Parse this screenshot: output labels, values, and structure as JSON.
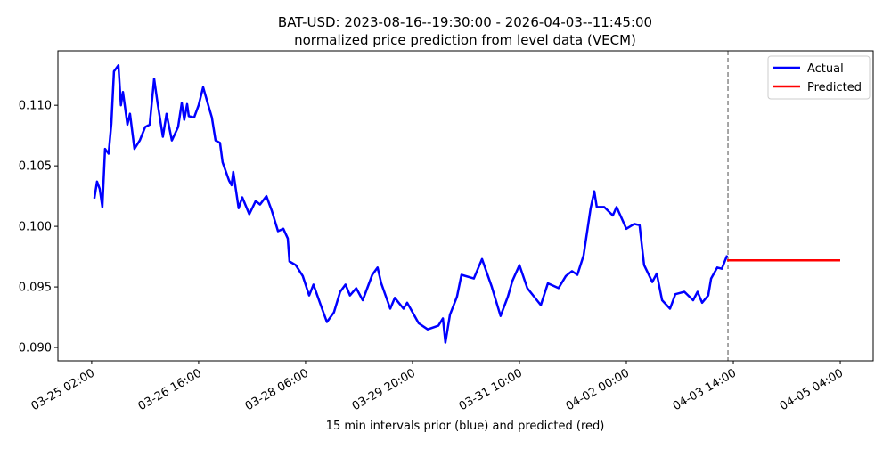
{
  "chart_data": {
    "type": "line",
    "title": "BAT-USD: 2023-08-16--19:30:00 - 2026-04-03--11:45:00",
    "subtitle": "normalized price prediction from level data (VECM)",
    "xlabel": "15 min intervals prior (blue) and predicted (red)",
    "ylabel": "",
    "x_unit": "hours since 03-25 02:00",
    "xlim": [
      -12,
      277.7
    ],
    "ylim": [
      0.0889,
      0.1145
    ],
    "x_ticks": [
      {
        "value": 0,
        "label": "03-25 02:00"
      },
      {
        "value": 38,
        "label": "03-26 16:00"
      },
      {
        "value": 76,
        "label": "03-28 06:00"
      },
      {
        "value": 114,
        "label": "03-29 20:00"
      },
      {
        "value": 152,
        "label": "03-31 10:00"
      },
      {
        "value": 190,
        "label": "04-02 00:00"
      },
      {
        "value": 228,
        "label": "04-03 14:00"
      },
      {
        "value": 266,
        "label": "04-05 04:00"
      }
    ],
    "y_ticks": [
      {
        "value": 0.09,
        "label": "0.090"
      },
      {
        "value": 0.095,
        "label": "0.095"
      },
      {
        "value": 0.1,
        "label": "0.100"
      },
      {
        "value": 0.105,
        "label": "0.105"
      },
      {
        "value": 0.11,
        "label": "0.110"
      }
    ],
    "grid": false,
    "legend_position": "top-right",
    "forecast_start": 226.1,
    "series": [
      {
        "name": "Actual",
        "color": "#0000ff",
        "x": [
          0.95,
          1.9,
          2.85,
          3.8,
          4.75,
          6.0,
          7.0,
          7.9,
          9.5,
          10.4,
          11.1,
          12.7,
          13.6,
          15.2,
          17.1,
          19.0,
          20.6,
          22.2,
          23.4,
          25.3,
          26.6,
          28.5,
          30.7,
          32.0,
          32.9,
          33.9,
          34.5,
          36.4,
          38.0,
          39.6,
          41.2,
          42.7,
          44.0,
          45.6,
          46.5,
          48.8,
          49.7,
          50.3,
          52.2,
          53.5,
          56.0,
          58.3,
          59.8,
          62.1,
          64.0,
          66.2,
          68.1,
          69.7,
          70.3,
          72.5,
          75.0,
          77.3,
          78.8,
          81.4,
          83.6,
          86.1,
          88.3,
          90.2,
          91.8,
          94.0,
          96.3,
          99.7,
          101.6,
          102.9,
          106.1,
          107.7,
          110.8,
          112.1,
          116.2,
          119.4,
          123.2,
          124.8,
          125.7,
          127.3,
          129.8,
          131.4,
          135.8,
          138.7,
          142.2,
          145.3,
          147.9,
          149.5,
          152.0,
          154.8,
          159.6,
          162.1,
          165.9,
          168.5,
          170.7,
          172.6,
          174.8,
          177.3,
          178.6,
          179.5,
          182.1,
          185.2,
          186.5,
          190.0,
          192.8,
          194.7,
          196.3,
          199.2,
          200.8,
          202.7,
          205.5,
          207.4,
          210.6,
          213.7,
          215.3,
          216.9,
          219.1,
          220.1,
          222.3,
          223.9,
          225.8
        ],
        "y": [
          0.1023,
          0.1037,
          0.1031,
          0.1016,
          0.1064,
          0.106,
          0.1085,
          0.1128,
          0.1133,
          0.11,
          0.1111,
          0.1084,
          0.1093,
          0.1064,
          0.1071,
          0.1082,
          0.1084,
          0.1122,
          0.1102,
          0.1074,
          0.1093,
          0.1071,
          0.1082,
          0.1102,
          0.1088,
          0.1101,
          0.1091,
          0.109,
          0.11,
          0.1115,
          0.1102,
          0.109,
          0.1071,
          0.1069,
          0.1053,
          0.1038,
          0.1034,
          0.1045,
          0.1015,
          0.1024,
          0.101,
          0.1021,
          0.1018,
          0.1025,
          0.1013,
          0.0996,
          0.0998,
          0.099,
          0.0971,
          0.0968,
          0.0959,
          0.0943,
          0.0952,
          0.0935,
          0.0921,
          0.0929,
          0.0946,
          0.0952,
          0.0943,
          0.0949,
          0.0939,
          0.096,
          0.0966,
          0.0953,
          0.0932,
          0.0941,
          0.0932,
          0.0937,
          0.092,
          0.0915,
          0.0918,
          0.0924,
          0.0904,
          0.0927,
          0.0942,
          0.096,
          0.0957,
          0.0973,
          0.095,
          0.0926,
          0.0942,
          0.0955,
          0.0968,
          0.0949,
          0.0935,
          0.0953,
          0.0949,
          0.0959,
          0.0963,
          0.096,
          0.0976,
          0.1015,
          0.1029,
          0.1016,
          0.1016,
          0.1009,
          0.1016,
          0.0998,
          0.1002,
          0.1001,
          0.0968,
          0.0954,
          0.0961,
          0.0939,
          0.0932,
          0.0944,
          0.0946,
          0.0939,
          0.0946,
          0.0937,
          0.0943,
          0.0957,
          0.0966,
          0.0965,
          0.0976
        ]
      },
      {
        "name": "Predicted",
        "color": "#ff0000",
        "x": [
          225.8,
          266
        ],
        "y": [
          0.0972,
          0.0972
        ]
      }
    ]
  }
}
